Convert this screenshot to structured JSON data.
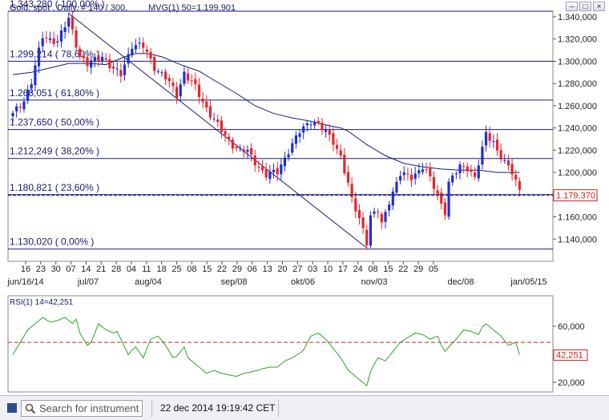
{
  "header": {
    "title": "Gold, spot , Daily, # 140 / 300,",
    "indicator": "MVG(1) 50=1.199,901"
  },
  "rsi": {
    "title": "RSI(1) 14=42,251",
    "value_box": "42,251",
    "ticks": [
      "60,000",
      "20,000"
    ]
  },
  "price_box": "1.179,370",
  "statusbar": {
    "search_placeholder": "Search for instrument",
    "timestamp": "22 dec 2014 19:19:42 CET"
  },
  "colors": {
    "up": "#1e2ed8",
    "down": "#e8252b",
    "line": "#1a1a7a",
    "rsi_line": "#2da02d",
    "rsi_mid": "#cc2222",
    "price_box": "#cc2222"
  },
  "chart_data": {
    "type": "candlestick",
    "ylim": [
      1120,
      1345
    ],
    "y_ticks": [
      "1.340,000",
      "1.320,000",
      "1.300,000",
      "1.280,000",
      "1.260,000",
      "1.240,000",
      "1.220,000",
      "1.200,000",
      "1.180,000",
      "1.160,000",
      "1.140,000"
    ],
    "x_ticks": [
      "16",
      "23",
      "30",
      "07",
      "14",
      "21",
      "28",
      "04",
      "11",
      "18",
      "25",
      "08",
      "15",
      "22",
      "29",
      "06",
      "13",
      "20",
      "27",
      "03",
      "10",
      "17",
      "24",
      "08",
      "15",
      "22",
      "29",
      "05"
    ],
    "month_labels": [
      "jun/16/14",
      "jul/07",
      "aug/04",
      "sep/08",
      "okt/06",
      "nov/03",
      "dec/08",
      "jan/05/15"
    ],
    "fib_levels": [
      {
        "label": "1.343,280 ( 100,00% )",
        "value": 1345
      },
      {
        "label": "1.299,214 ( 78,60% )",
        "value": 1300
      },
      {
        "label": "1.268,051 ( 61,80% )",
        "value": 1265
      },
      {
        "label": "1.237,650 ( 50,00% )",
        "value": 1238.5
      },
      {
        "label": "1.212,249 ( 38,20% )",
        "value": 1212.5
      },
      {
        "label": "1.180,821 ( 23,60% )",
        "value": 1180
      },
      {
        "label": "1.130,020 ( 0,00% )",
        "value": 1131
      }
    ],
    "current_price": 1179.37,
    "candle_count": 137,
    "anchors": [
      [
        0,
        1252
      ],
      [
        3,
        1265
      ],
      [
        5,
        1282
      ],
      [
        8,
        1322
      ],
      [
        12,
        1318
      ],
      [
        15,
        1338
      ],
      [
        18,
        1305
      ],
      [
        20,
        1297
      ],
      [
        24,
        1305
      ],
      [
        27,
        1292
      ],
      [
        29,
        1288
      ],
      [
        32,
        1315
      ],
      [
        35,
        1313
      ],
      [
        38,
        1295
      ],
      [
        41,
        1285
      ],
      [
        44,
        1270
      ],
      [
        46,
        1290
      ],
      [
        49,
        1276
      ],
      [
        51,
        1263
      ],
      [
        54,
        1248
      ],
      [
        57,
        1232
      ],
      [
        60,
        1222
      ],
      [
        63,
        1218
      ],
      [
        66,
        1205
      ],
      [
        68,
        1198
      ],
      [
        71,
        1200
      ],
      [
        74,
        1220
      ],
      [
        77,
        1236
      ],
      [
        80,
        1247
      ],
      [
        82,
        1243
      ],
      [
        86,
        1228
      ],
      [
        88,
        1215
      ],
      [
        91,
        1175
      ],
      [
        94,
        1150
      ],
      [
        95,
        1138
      ],
      [
        96,
        1160
      ],
      [
        98,
        1165
      ],
      [
        99,
        1153
      ],
      [
        101,
        1175
      ],
      [
        104,
        1198
      ],
      [
        107,
        1196
      ],
      [
        110,
        1205
      ],
      [
        112,
        1194
      ],
      [
        114,
        1180
      ],
      [
        116,
        1165
      ],
      [
        117,
        1190
      ],
      [
        120,
        1205
      ],
      [
        122,
        1205
      ],
      [
        124,
        1195
      ],
      [
        126,
        1220
      ],
      [
        127,
        1235
      ],
      [
        129,
        1228
      ],
      [
        130,
        1220
      ],
      [
        132,
        1208
      ],
      [
        134,
        1200
      ],
      [
        136,
        1185
      ]
    ],
    "moving_average": [
      [
        0,
        1288
      ],
      [
        5,
        1290
      ],
      [
        10,
        1294
      ],
      [
        15,
        1298
      ],
      [
        20,
        1298
      ],
      [
        25,
        1297
      ],
      [
        30,
        1304
      ],
      [
        33,
        1307
      ],
      [
        36,
        1307
      ],
      [
        40,
        1304
      ],
      [
        45,
        1297
      ],
      [
        50,
        1291
      ],
      [
        55,
        1281
      ],
      [
        60,
        1271
      ],
      [
        65,
        1260
      ],
      [
        70,
        1253
      ],
      [
        75,
        1249
      ],
      [
        80,
        1246
      ],
      [
        85,
        1242
      ],
      [
        88,
        1240
      ],
      [
        90,
        1237
      ],
      [
        95,
        1225
      ],
      [
        100,
        1215
      ],
      [
        105,
        1208
      ],
      [
        110,
        1205
      ],
      [
        115,
        1203
      ],
      [
        120,
        1202
      ],
      [
        125,
        1202
      ],
      [
        130,
        1200
      ],
      [
        136,
        1200
      ]
    ],
    "trendlines": [
      [
        [
          15,
          1343
        ],
        [
          95,
          1132
        ]
      ]
    ],
    "rsi": {
      "ylim": [
        18,
        80
      ],
      "mid": 50,
      "values": [
        [
          0,
          42
        ],
        [
          2,
          50
        ],
        [
          4,
          58
        ],
        [
          6,
          62
        ],
        [
          8,
          66
        ],
        [
          10,
          63
        ],
        [
          12,
          64
        ],
        [
          14,
          66
        ],
        [
          16,
          62
        ],
        [
          17,
          65
        ],
        [
          18,
          56
        ],
        [
          20,
          48
        ],
        [
          21,
          50
        ],
        [
          23,
          62
        ],
        [
          24,
          60
        ],
        [
          25,
          58
        ],
        [
          27,
          56
        ],
        [
          28,
          57
        ],
        [
          29,
          52
        ],
        [
          31,
          42
        ],
        [
          32,
          45
        ],
        [
          33,
          47
        ],
        [
          35,
          40
        ],
        [
          37,
          52
        ],
        [
          39,
          54
        ],
        [
          41,
          48
        ],
        [
          43,
          40
        ],
        [
          44,
          41
        ],
        [
          46,
          47
        ],
        [
          47,
          40
        ],
        [
          49,
          36
        ],
        [
          50,
          34
        ],
        [
          52,
          30
        ],
        [
          54,
          32
        ],
        [
          56,
          30
        ],
        [
          58,
          29
        ],
        [
          60,
          28
        ],
        [
          62,
          30
        ],
        [
          64,
          31
        ],
        [
          66,
          32
        ],
        [
          67,
          33
        ],
        [
          69,
          34
        ],
        [
          71,
          34
        ],
        [
          73,
          38
        ],
        [
          75,
          40
        ],
        [
          77,
          43
        ],
        [
          78,
          45
        ],
        [
          80,
          54
        ],
        [
          82,
          56
        ],
        [
          84,
          52
        ],
        [
          86,
          46
        ],
        [
          88,
          40
        ],
        [
          90,
          32
        ],
        [
          91,
          30
        ],
        [
          93,
          26
        ],
        [
          95,
          22
        ],
        [
          96,
          31
        ],
        [
          97,
          36
        ],
        [
          98,
          40
        ],
        [
          100,
          38
        ],
        [
          102,
          44
        ],
        [
          104,
          50
        ],
        [
          106,
          53
        ],
        [
          108,
          56
        ],
        [
          110,
          55
        ],
        [
          112,
          52
        ],
        [
          114,
          54
        ],
        [
          115,
          48
        ],
        [
          116,
          44
        ],
        [
          117,
          47
        ],
        [
          119,
          52
        ],
        [
          121,
          58
        ],
        [
          123,
          57
        ],
        [
          125,
          55
        ],
        [
          126,
          60
        ],
        [
          127,
          62
        ],
        [
          129,
          58
        ],
        [
          131,
          54
        ],
        [
          133,
          48
        ],
        [
          135,
          50
        ],
        [
          136,
          42
        ]
      ]
    }
  }
}
